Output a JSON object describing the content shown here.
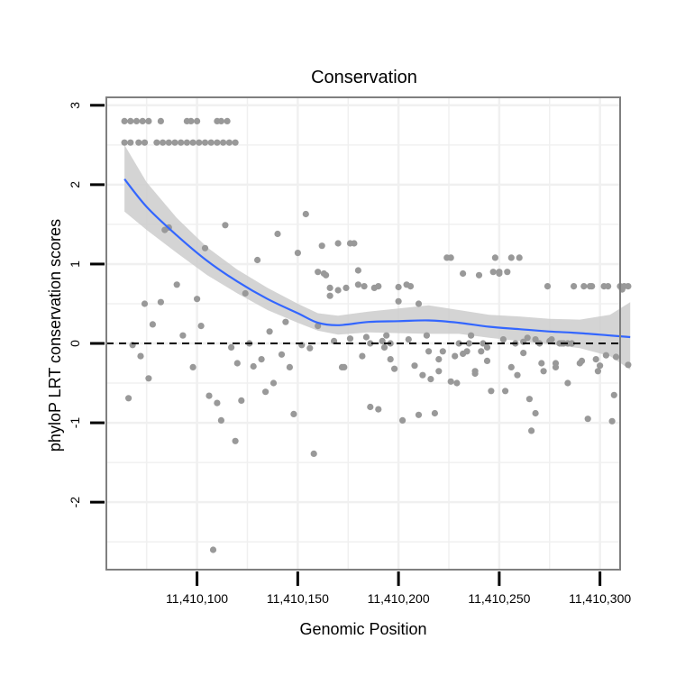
{
  "chart_data": {
    "type": "scatter",
    "title": "Conservation",
    "xlabel": "Genomic Position",
    "ylabel": "phyloP LRT conservation scores",
    "xlim": [
      11410055,
      11410310
    ],
    "ylim": [
      -2.85,
      3.1
    ],
    "x_ticks": [
      11410100,
      11410150,
      11410200,
      11410250,
      11410300
    ],
    "x_tick_labels": [
      "11,410,100",
      "11,410,150",
      "11,410,200",
      "11,410,250",
      "11,410,300"
    ],
    "y_ticks": [
      -2,
      -1,
      0,
      1,
      2,
      3
    ],
    "y_tick_labels": [
      "-2",
      "-1",
      "0",
      "1",
      "2",
      "3"
    ],
    "reference_line": {
      "y": 0,
      "style": "dashed"
    },
    "colors": {
      "points": "#999999",
      "smooth": "#3366ff",
      "ribbon": "#cccccc",
      "frame": "#7f7f7f",
      "grid": "#f0f0f0"
    },
    "smooth": {
      "x": [
        11410064,
        11410075,
        11410090,
        11410105,
        11410120,
        11410135,
        11410150,
        11410160,
        11410170,
        11410185,
        11410200,
        11410215,
        11410230,
        11410245,
        11410260,
        11410275,
        11410290,
        11410305,
        11410315
      ],
      "y": [
        2.07,
        1.72,
        1.36,
        1.04,
        0.78,
        0.56,
        0.38,
        0.26,
        0.23,
        0.27,
        0.28,
        0.29,
        0.26,
        0.21,
        0.18,
        0.15,
        0.13,
        0.1,
        0.08
      ],
      "upper": [
        2.5,
        2.03,
        1.58,
        1.21,
        0.93,
        0.7,
        0.5,
        0.38,
        0.35,
        0.4,
        0.44,
        0.48,
        0.42,
        0.36,
        0.34,
        0.31,
        0.3,
        0.36,
        0.52
      ],
      "lower": [
        1.66,
        1.43,
        1.14,
        0.86,
        0.63,
        0.42,
        0.26,
        0.16,
        0.11,
        0.14,
        0.13,
        0.12,
        0.12,
        0.07,
        0.03,
        -0.01,
        -0.06,
        -0.16,
        -0.33
      ]
    },
    "points": {
      "x": [
        11410064,
        11410067,
        11410070,
        11410073,
        11410076,
        11410082,
        11410095,
        11410097,
        11410100,
        11410110,
        11410112,
        11410115,
        11410064,
        11410067,
        11410071,
        11410074,
        11410080,
        11410083,
        11410086,
        11410089,
        11410092,
        11410095,
        11410098,
        11410101,
        11410104,
        11410107,
        11410110,
        11410113,
        11410116,
        11410119,
        11410066,
        11410068,
        11410072,
        11410074,
        11410076,
        11410078,
        11410082,
        11410084,
        11410086,
        11410090,
        11410093,
        11410098,
        11410100,
        11410102,
        11410104,
        11410106,
        11410108,
        11410110,
        11410112,
        11410114,
        11410117,
        11410119,
        11410120,
        11410122,
        11410124,
        11410126,
        11410128,
        11410130,
        11410132,
        11410134,
        11410136,
        11410138,
        11410140,
        11410142,
        11410144,
        11410146,
        11410148,
        11410150,
        11410152,
        11410154,
        11410156,
        11410158,
        11410160,
        11410162,
        11410164,
        11410166,
        11410168,
        11410170,
        11410172,
        11410174,
        11410176,
        11410178,
        11410180,
        11410182,
        11410184,
        11410186,
        11410188,
        11410190,
        11410192,
        11410194,
        11410196,
        11410198,
        11410200,
        11410202,
        11410204,
        11410206,
        11410208,
        11410210,
        11410212,
        11410214,
        11410216,
        11410218,
        11410220,
        11410222,
        11410224,
        11410226,
        11410228,
        11410230,
        11410232,
        11410234,
        11410236,
        11410238,
        11410240,
        11410242,
        11410244,
        11410246,
        11410248,
        11410250,
        11410252,
        11410254,
        11410256,
        11410258,
        11410260,
        11410262,
        11410264,
        11410266,
        11410268,
        11410270,
        11410272,
        11410274,
        11410276,
        11410278,
        11410280,
        11410282,
        11410284,
        11410286,
        11410290,
        11410292,
        11410294,
        11410296,
        11410298,
        11410300,
        11410302,
        11410304,
        11410306,
        11410308,
        11410310,
        11410312,
        11410314,
        11410160,
        11410163,
        11410166,
        11410170,
        11410173,
        11410176,
        11410180,
        11410183,
        11410186,
        11410190,
        11410193,
        11410196,
        11410200,
        11410205,
        11410210,
        11410215,
        11410220,
        11410226,
        11410229,
        11410232,
        11410235,
        11410238,
        11410241,
        11410244,
        11410247,
        11410250,
        11410253,
        11410256,
        11410259,
        11410262,
        11410265,
        11410268,
        11410271,
        11410275,
        11410278,
        11410281,
        11410284,
        11410287,
        11410291,
        11410295,
        11410299,
        11410303,
        11410307,
        11410311,
        11410314
      ],
      "y": [
        2.8,
        2.8,
        2.8,
        2.8,
        2.8,
        2.8,
        2.8,
        2.8,
        2.8,
        2.8,
        2.8,
        2.8,
        2.53,
        2.53,
        2.53,
        2.53,
        2.53,
        2.53,
        2.53,
        2.53,
        2.53,
        2.53,
        2.53,
        2.53,
        2.53,
        2.53,
        2.53,
        2.53,
        2.53,
        2.53,
        -0.69,
        -0.02,
        -0.16,
        0.5,
        -0.44,
        0.24,
        0.52,
        1.43,
        1.46,
        0.74,
        0.1,
        -0.3,
        0.56,
        0.22,
        1.2,
        -0.66,
        -2.6,
        -0.75,
        -0.97,
        1.49,
        -0.05,
        -1.23,
        -0.25,
        -0.72,
        0.63,
        0.0,
        -0.29,
        1.05,
        -0.2,
        -0.61,
        0.15,
        -0.5,
        1.38,
        -0.14,
        0.27,
        -0.3,
        -0.89,
        1.14,
        -0.02,
        1.63,
        -0.06,
        -1.39,
        0.22,
        1.23,
        0.86,
        0.6,
        0.03,
        0.67,
        -0.3,
        0.7,
        0.06,
        1.26,
        0.92,
        -0.16,
        0.08,
        0.0,
        0.7,
        -0.83,
        0.03,
        0.1,
        0.0,
        -0.32,
        0.71,
        -0.97,
        0.74,
        0.72,
        -0.28,
        0.5,
        -0.4,
        0.1,
        -0.45,
        -0.88,
        -0.35,
        -0.1,
        1.08,
        -0.48,
        -0.16,
        0.0,
        0.88,
        -0.1,
        0.1,
        -0.38,
        0.86,
        0.0,
        -0.05,
        -0.6,
        1.08,
        0.88,
        0.05,
        0.9,
        -0.3,
        0.0,
        1.08,
        -0.12,
        0.07,
        -1.1,
        -0.88,
        0.0,
        -0.35,
        0.72,
        0.05,
        -0.25,
        0.0,
        0.0,
        0.0,
        0.0,
        -0.25,
        0.72,
        -0.95,
        0.72,
        -0.2,
        -0.28,
        0.72,
        0.72,
        -0.98,
        -0.17,
        0.72,
        0.72,
        -0.27,
        0.9,
        0.88,
        0.7,
        1.26,
        -0.3,
        1.26,
        0.74,
        0.72,
        -0.8,
        0.72,
        -0.05,
        -0.2,
        0.53,
        0.05,
        -0.9,
        -0.1,
        -0.2,
        1.08,
        -0.5,
        -0.13,
        0.0,
        -0.35,
        -0.1,
        -0.22,
        0.9,
        0.9,
        -0.6,
        1.08,
        -0.4,
        0.02,
        -0.7,
        0.05,
        -0.25,
        0.03,
        -0.3,
        0.0,
        -0.5,
        0.72,
        -0.22,
        0.72,
        -0.35,
        -0.15,
        -0.65,
        0.68,
        0.72
      ]
    }
  }
}
